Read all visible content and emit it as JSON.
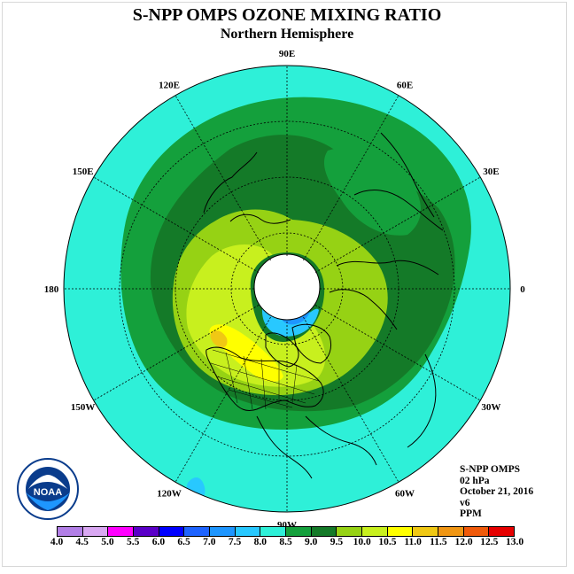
{
  "title": "S-NPP OMPS OZONE MIXING RATIO",
  "subtitle": "Northern Hemisphere",
  "longitude_labels": [
    {
      "id": "90e",
      "text": "90E",
      "angle": -90
    },
    {
      "id": "60e",
      "text": "60E",
      "angle": -60
    },
    {
      "id": "30e",
      "text": "30E",
      "angle": -30
    },
    {
      "id": "0",
      "text": "0",
      "angle": 0
    },
    {
      "id": "30w",
      "text": "30W",
      "angle": 30
    },
    {
      "id": "60w",
      "text": "60W",
      "angle": 60
    },
    {
      "id": "90w",
      "text": "90W",
      "angle": 90
    },
    {
      "id": "120w",
      "text": "120W",
      "angle": 120
    },
    {
      "id": "150w",
      "text": "150W",
      "angle": 150
    },
    {
      "id": "180",
      "text": "180",
      "angle": 180
    },
    {
      "id": "150e",
      "text": "150E",
      "angle": -150
    },
    {
      "id": "120e",
      "text": "120E",
      "angle": -120
    }
  ],
  "info": {
    "instrument": "S-NPP OMPS",
    "pressure": "02 hPa",
    "date": "October 21, 2016",
    "version": "v6",
    "units": "PPM"
  },
  "logo": {
    "text": "NOAA"
  },
  "colorbar": {
    "labels": [
      "4.0",
      "4.5",
      "5.0",
      "5.5",
      "6.0",
      "6.5",
      "7.0",
      "7.5",
      "8.0",
      "8.5",
      "9.0",
      "9.5",
      "10.0",
      "10.5",
      "11.0",
      "11.5",
      "12.0",
      "12.5",
      "13.0"
    ],
    "colors": [
      "#b27fe6",
      "#d9a8f2",
      "#ff00ff",
      "#5a00c8",
      "#0000ff",
      "#1e64ff",
      "#1e96ff",
      "#28c8ff",
      "#2ef0d8",
      "#14a03c",
      "#147a28",
      "#96d214",
      "#c8f01e",
      "#ffff00",
      "#f0c814",
      "#f09614",
      "#f05a0a",
      "#e60000",
      "#8c5a3c"
    ]
  },
  "map_colors": {
    "c_8_0": "#2ef0d8",
    "c_8_5": "#14a03c",
    "c_9_0": "#147a28",
    "c_9_5": "#96d214",
    "c_10_0": "#c8f01e",
    "c_10_5": "#ffff00",
    "c_11_0": "#f0c814",
    "c_7_0": "#1e96ff",
    "c_7_5": "#28c8ff",
    "no_data": "#ffffff"
  }
}
